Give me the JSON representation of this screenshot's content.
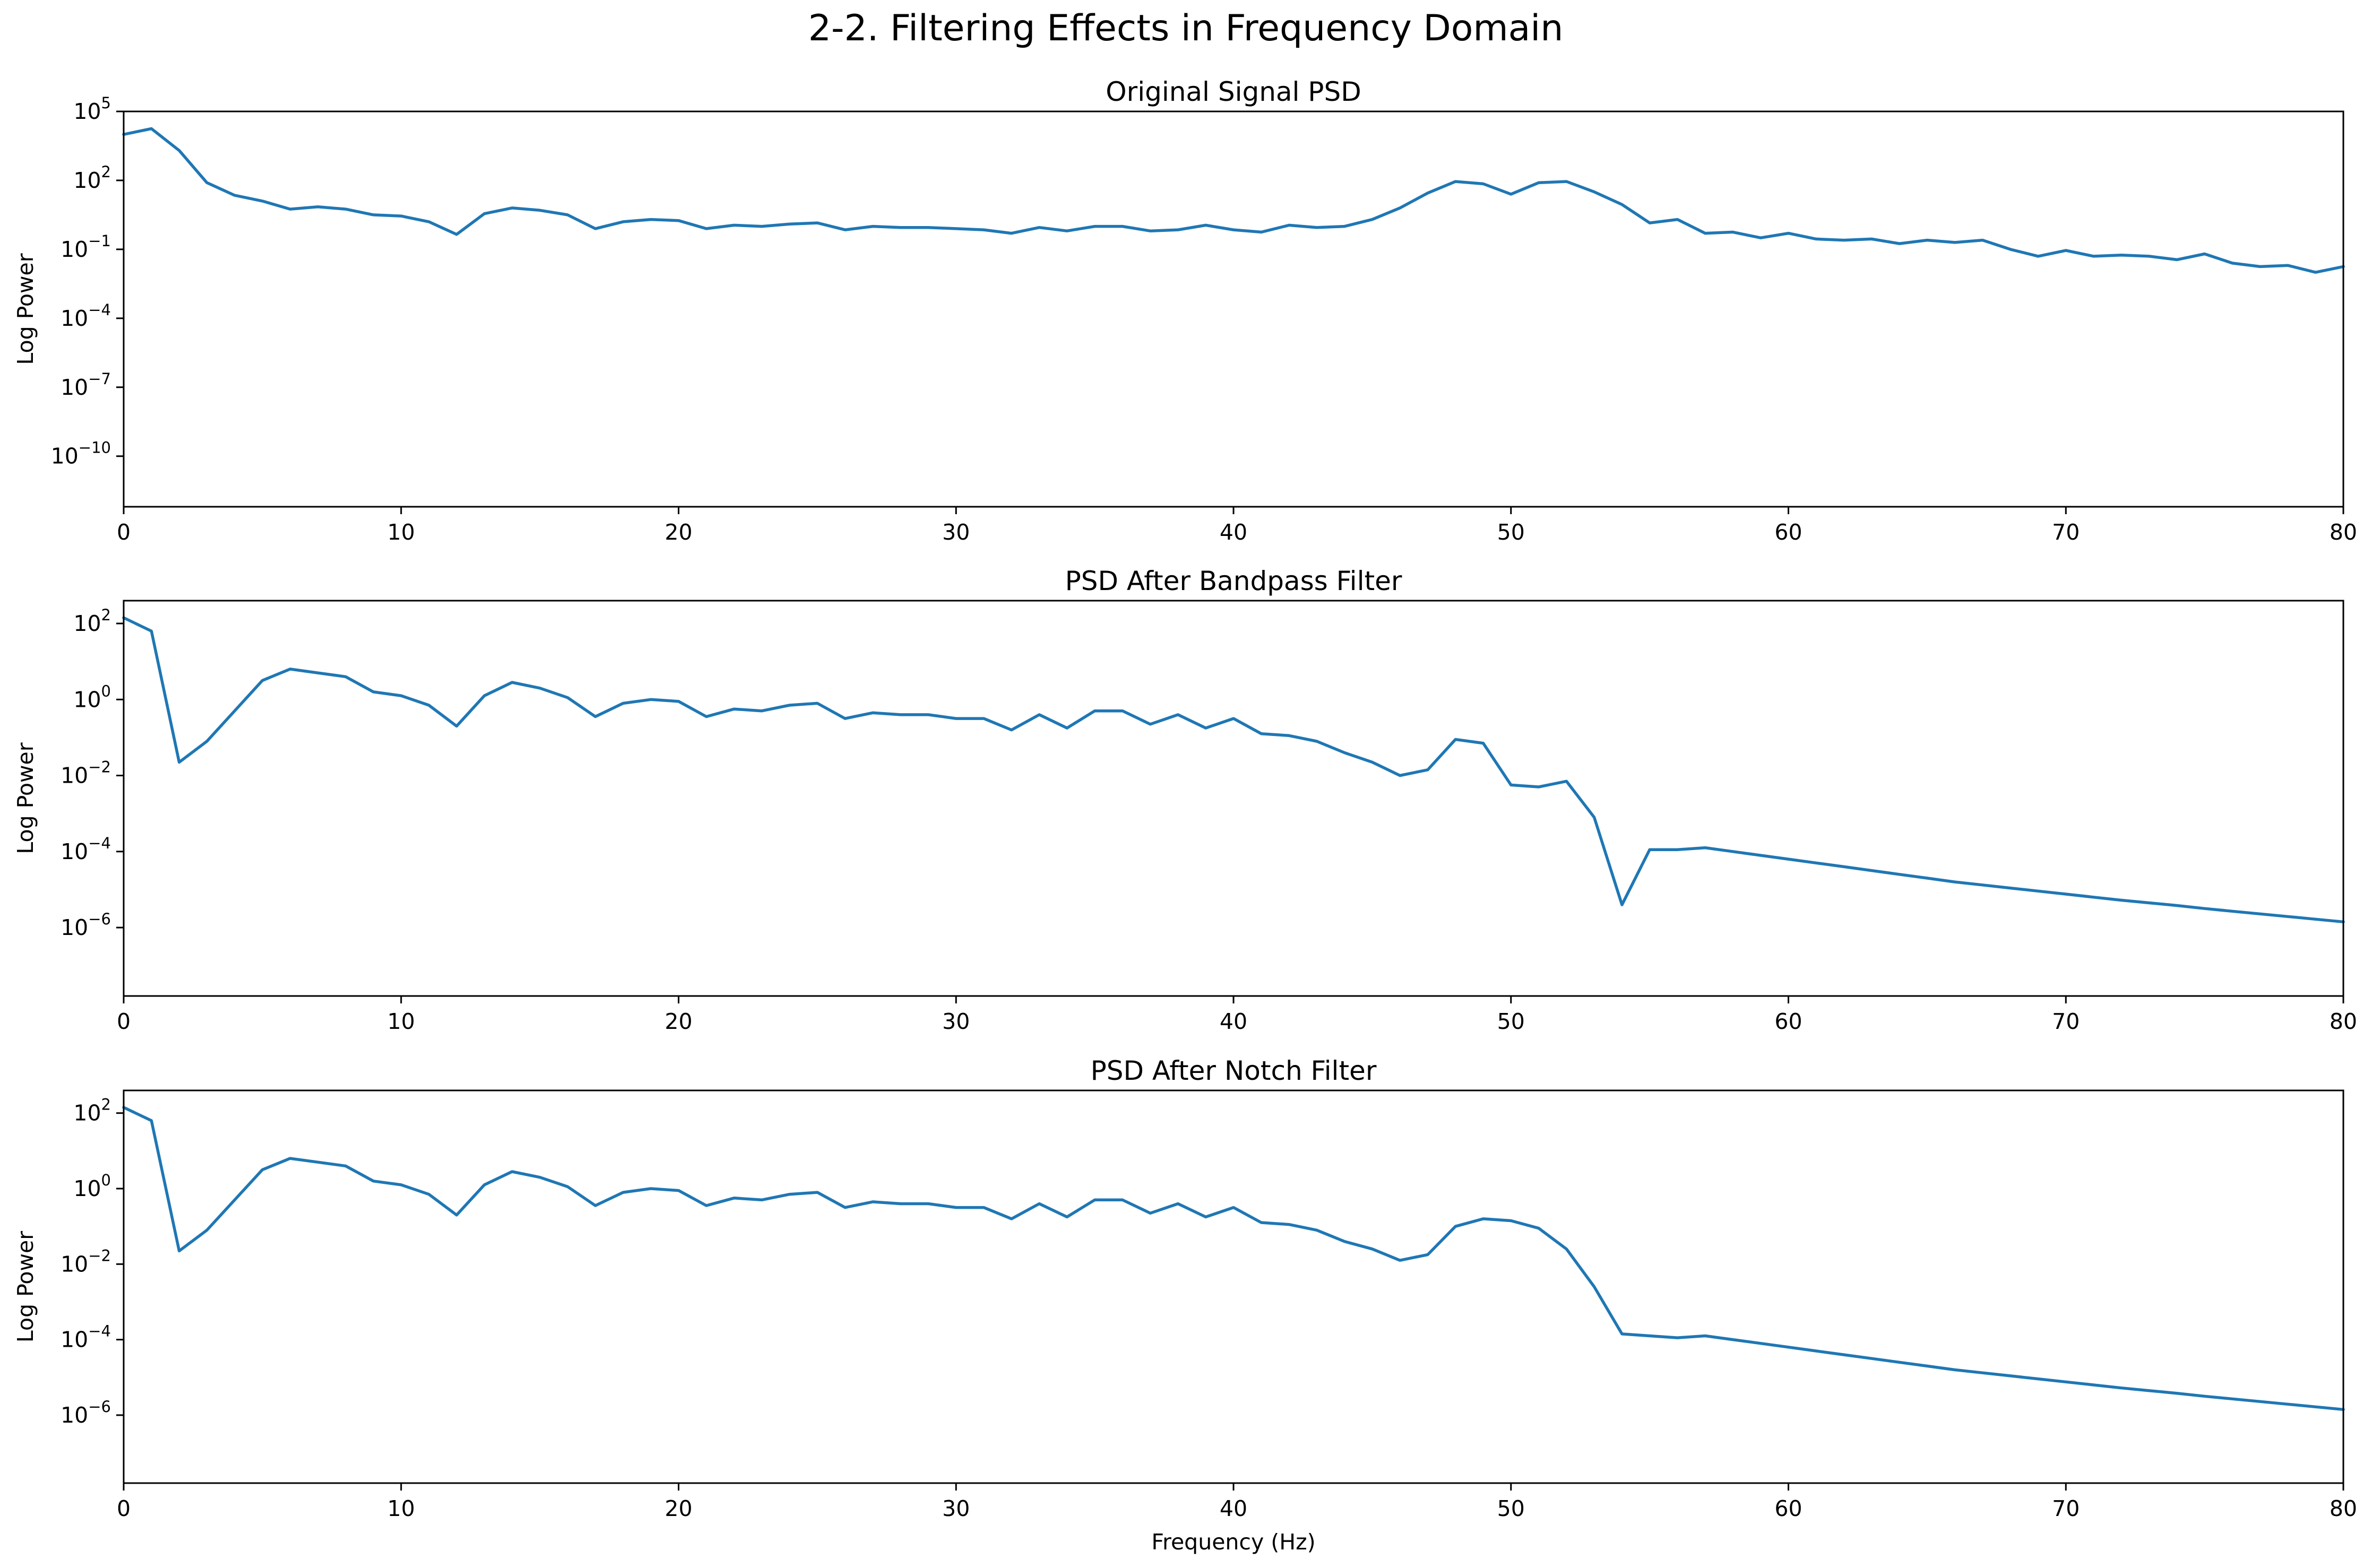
{
  "figure": {
    "title": "2-2. Filtering Effects in Frequency Domain"
  },
  "chart_data": [
    {
      "type": "line",
      "title": "Original Signal PSD",
      "xlabel": "",
      "ylabel": "Log Power",
      "xlim": [
        0,
        80
      ],
      "ylim_log10": [
        -12.2,
        5
      ],
      "yscale": "log",
      "grid": false,
      "xticks": [
        0,
        10,
        20,
        30,
        40,
        50,
        60,
        70,
        80
      ],
      "yticks": [
        {
          "base": "10",
          "exp": "5",
          "v": 5
        },
        {
          "base": "10",
          "exp": "2",
          "v": 2
        },
        {
          "base": "10",
          "exp": "−1",
          "v": -1
        },
        {
          "base": "10",
          "exp": "−4",
          "v": -4
        },
        {
          "base": "10",
          "exp": "−7",
          "v": -7
        },
        {
          "base": "10",
          "exp": "−10",
          "v": -10
        }
      ],
      "color": "#1f77b4",
      "x": [
        0,
        1,
        2,
        3,
        4,
        5,
        6,
        7,
        8,
        9,
        10,
        11,
        12,
        13,
        14,
        15,
        16,
        17,
        18,
        19,
        20,
        21,
        22,
        23,
        24,
        25,
        26,
        27,
        28,
        29,
        30,
        31,
        32,
        33,
        34,
        35,
        36,
        37,
        38,
        39,
        40,
        41,
        42,
        43,
        44,
        45,
        46,
        47,
        48,
        49,
        50,
        51,
        52,
        53,
        54,
        55,
        56,
        57,
        58,
        59,
        60,
        61,
        62,
        63,
        64,
        65,
        66,
        67,
        68,
        69,
        70,
        71,
        72,
        73,
        74,
        75,
        76,
        77,
        78,
        79,
        80
      ],
      "log10_power": [
        4.0,
        4.25,
        3.3,
        1.9,
        1.35,
        1.1,
        0.75,
        0.85,
        0.75,
        0.5,
        0.45,
        0.2,
        -0.35,
        0.55,
        0.8,
        0.7,
        0.5,
        -0.1,
        0.2,
        0.3,
        0.25,
        -0.1,
        0.05,
        0.0,
        0.1,
        0.15,
        -0.15,
        0.0,
        -0.05,
        -0.05,
        -0.1,
        -0.15,
        -0.3,
        -0.05,
        -0.2,
        0.0,
        0.0,
        -0.2,
        -0.15,
        0.05,
        -0.15,
        -0.25,
        0.05,
        -0.05,
        0.0,
        0.3,
        0.8,
        1.45,
        1.95,
        1.85,
        1.4,
        1.9,
        1.95,
        1.5,
        0.95,
        0.15,
        0.3,
        -0.3,
        -0.25,
        -0.5,
        -0.3,
        -0.55,
        -0.6,
        -0.55,
        -0.75,
        -0.6,
        -0.7,
        -0.6,
        -1.0,
        -1.3,
        -1.05,
        -1.3,
        -1.25,
        -1.3,
        -1.45,
        -1.2,
        -1.6,
        -1.75,
        -1.7,
        -2.0,
        -1.75
      ]
    },
    {
      "type": "line",
      "title": "PSD After Bandpass Filter",
      "xlabel": "",
      "ylabel": "Log Power",
      "xlim": [
        0,
        80
      ],
      "ylim_log10": [
        -7.8,
        2.6
      ],
      "yscale": "log",
      "grid": false,
      "xticks": [
        0,
        10,
        20,
        30,
        40,
        50,
        60,
        70,
        80
      ],
      "yticks": [
        {
          "base": "10",
          "exp": "2",
          "v": 2
        },
        {
          "base": "10",
          "exp": "0",
          "v": 0
        },
        {
          "base": "10",
          "exp": "−2",
          "v": -2
        },
        {
          "base": "10",
          "exp": "−4",
          "v": -4
        },
        {
          "base": "10",
          "exp": "−6",
          "v": -6
        }
      ],
      "color": "#1f77b4",
      "x": [
        0,
        1,
        2,
        3,
        4,
        5,
        6,
        7,
        8,
        9,
        10,
        11,
        12,
        13,
        14,
        15,
        16,
        17,
        18,
        19,
        20,
        21,
        22,
        23,
        24,
        25,
        26,
        27,
        28,
        29,
        30,
        31,
        32,
        33,
        34,
        35,
        36,
        37,
        38,
        39,
        40,
        41,
        42,
        43,
        44,
        45,
        46,
        47,
        48,
        49,
        50,
        51,
        52,
        53,
        54,
        55,
        56,
        57,
        58,
        59,
        60,
        61,
        62,
        63,
        64,
        65,
        66,
        67,
        68,
        69,
        70,
        71,
        72,
        73,
        74,
        75,
        76,
        77,
        78,
        79,
        80
      ],
      "log10_power": [
        2.15,
        1.8,
        -1.65,
        -1.1,
        -0.3,
        0.5,
        0.8,
        0.7,
        0.6,
        0.2,
        0.1,
        -0.15,
        -0.7,
        0.1,
        0.45,
        0.3,
        0.05,
        -0.45,
        -0.1,
        0.0,
        -0.05,
        -0.45,
        -0.25,
        -0.3,
        -0.15,
        -0.1,
        -0.5,
        -0.35,
        -0.4,
        -0.4,
        -0.5,
        -0.5,
        -0.8,
        -0.4,
        -0.75,
        -0.3,
        -0.3,
        -0.65,
        -0.4,
        -0.75,
        -0.5,
        -0.9,
        -0.95,
        -1.1,
        -1.4,
        -1.65,
        -2.0,
        -1.85,
        -1.05,
        -1.15,
        -2.25,
        -2.3,
        -2.15,
        -3.1,
        -5.4,
        -3.95,
        -3.95,
        -3.9,
        -4.0,
        -4.1,
        -4.2,
        -4.3,
        -4.4,
        -4.5,
        -4.6,
        -4.7,
        -4.8,
        -4.88,
        -4.96,
        -5.04,
        -5.12,
        -5.2,
        -5.28,
        -5.35,
        -5.42,
        -5.5,
        -5.57,
        -5.64,
        -5.71,
        -5.78,
        -5.85
      ]
    },
    {
      "type": "line",
      "title": "PSD After Notch Filter",
      "xlabel": "Frequency (Hz)",
      "ylabel": "Log Power",
      "xlim": [
        0,
        80
      ],
      "ylim_log10": [
        -7.8,
        2.6
      ],
      "yscale": "log",
      "grid": false,
      "xticks": [
        0,
        10,
        20,
        30,
        40,
        50,
        60,
        70,
        80
      ],
      "yticks": [
        {
          "base": "10",
          "exp": "2",
          "v": 2
        },
        {
          "base": "10",
          "exp": "0",
          "v": 0
        },
        {
          "base": "10",
          "exp": "−2",
          "v": -2
        },
        {
          "base": "10",
          "exp": "−4",
          "v": -4
        },
        {
          "base": "10",
          "exp": "−6",
          "v": -6
        }
      ],
      "color": "#1f77b4",
      "x": [
        0,
        1,
        2,
        3,
        4,
        5,
        6,
        7,
        8,
        9,
        10,
        11,
        12,
        13,
        14,
        15,
        16,
        17,
        18,
        19,
        20,
        21,
        22,
        23,
        24,
        25,
        26,
        27,
        28,
        29,
        30,
        31,
        32,
        33,
        34,
        35,
        36,
        37,
        38,
        39,
        40,
        41,
        42,
        43,
        44,
        45,
        46,
        47,
        48,
        49,
        50,
        51,
        52,
        53,
        54,
        55,
        56,
        57,
        58,
        59,
        60,
        61,
        62,
        63,
        64,
        65,
        66,
        67,
        68,
        69,
        70,
        71,
        72,
        73,
        74,
        75,
        76,
        77,
        78,
        79,
        80
      ],
      "log10_power": [
        2.15,
        1.8,
        -1.65,
        -1.1,
        -0.3,
        0.5,
        0.8,
        0.7,
        0.6,
        0.2,
        0.1,
        -0.15,
        -0.7,
        0.1,
        0.45,
        0.3,
        0.05,
        -0.45,
        -0.1,
        0.0,
        -0.05,
        -0.45,
        -0.25,
        -0.3,
        -0.15,
        -0.1,
        -0.5,
        -0.35,
        -0.4,
        -0.4,
        -0.5,
        -0.5,
        -0.8,
        -0.4,
        -0.75,
        -0.3,
        -0.3,
        -0.65,
        -0.4,
        -0.75,
        -0.5,
        -0.9,
        -0.95,
        -1.1,
        -1.4,
        -1.6,
        -1.9,
        -1.75,
        -1.0,
        -0.8,
        -0.85,
        -1.05,
        -1.6,
        -2.6,
        -3.85,
        -3.9,
        -3.95,
        -3.9,
        -4.0,
        -4.1,
        -4.2,
        -4.3,
        -4.4,
        -4.5,
        -4.6,
        -4.7,
        -4.8,
        -4.88,
        -4.96,
        -5.04,
        -5.12,
        -5.2,
        -5.28,
        -5.35,
        -5.42,
        -5.5,
        -5.57,
        -5.64,
        -5.71,
        -5.78,
        -5.85
      ]
    }
  ]
}
